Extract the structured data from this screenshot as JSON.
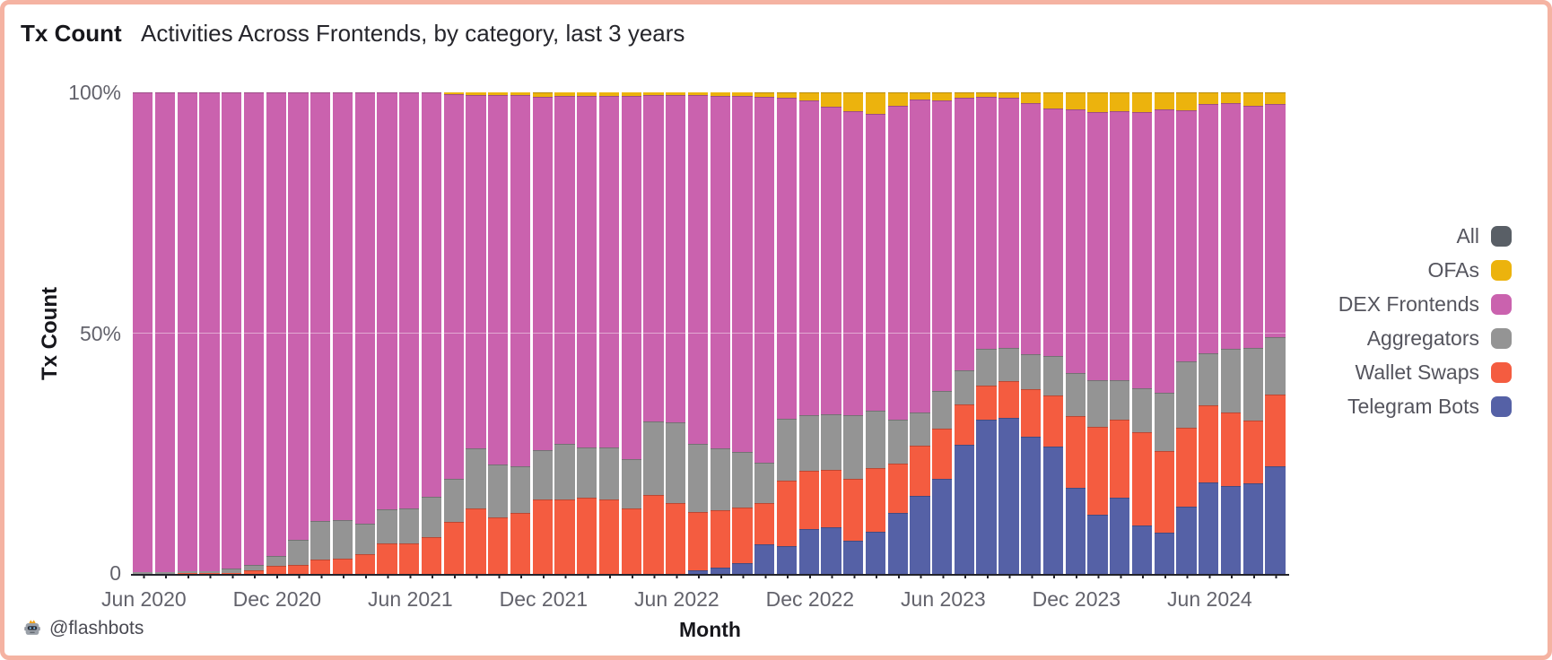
{
  "frame": {
    "border_color": "#f5b3a2",
    "background": "#ffffff"
  },
  "header": {
    "title": "Tx Count",
    "subtitle": "Activities Across Frontends, by category, last 3 years"
  },
  "y_axis": {
    "label": "Tx Count",
    "ticks": [
      "100%",
      "50%",
      "0"
    ]
  },
  "x_axis": {
    "label": "Month",
    "tick_labels": [
      "Jun 2020",
      "Dec 2020",
      "Jun 2021",
      "Dec 2021",
      "Jun 2022",
      "Dec 2022",
      "Jun 2023",
      "Dec 2023",
      "Jun 2024"
    ],
    "tick_indices": [
      0,
      6,
      12,
      18,
      24,
      30,
      36,
      42,
      48
    ]
  },
  "attribution": {
    "icon": "robot-crown",
    "handle": "@flashbots"
  },
  "legend": [
    {
      "label": "All",
      "color": "#595f66"
    },
    {
      "label": "OFAs",
      "color": "#ecb30d"
    },
    {
      "label": "DEX Frontends",
      "color": "#ca62ae"
    },
    {
      "label": "Aggregators",
      "color": "#949494"
    },
    {
      "label": "Wallet Swaps",
      "color": "#f45c40"
    },
    {
      "label": "Telegram Bots",
      "color": "#5561a6"
    }
  ],
  "chart_data": {
    "type": "bar",
    "stacked": true,
    "percent": true,
    "title": "Activities Across Frontends, by category, last 3 years",
    "xlabel": "Month",
    "ylabel": "Tx Count",
    "ylim": [
      0,
      100
    ],
    "grid": "50% line only",
    "legend_position": "right, outside plot, top-to-bottom: All, OFAs, DEX Frontends, Aggregators, Wallet Swaps, Telegram Bots",
    "categories": [
      "Jun 2020",
      "Jul 2020",
      "Aug 2020",
      "Sep 2020",
      "Oct 2020",
      "Nov 2020",
      "Dec 2020",
      "Jan 2021",
      "Feb 2021",
      "Mar 2021",
      "Apr 2021",
      "May 2021",
      "Jun 2021",
      "Jul 2021",
      "Aug 2021",
      "Sep 2021",
      "Oct 2021",
      "Nov 2021",
      "Dec 2021",
      "Jan 2022",
      "Feb 2022",
      "Mar 2022",
      "Apr 2022",
      "May 2022",
      "Jun 2022",
      "Jul 2022",
      "Aug 2022",
      "Sep 2022",
      "Oct 2022",
      "Nov 2022",
      "Dec 2022",
      "Jan 2023",
      "Feb 2023",
      "Mar 2023",
      "Apr 2023",
      "May 2023",
      "Jun 2023",
      "Jul 2023",
      "Aug 2023",
      "Sep 2023",
      "Oct 2023",
      "Nov 2023",
      "Dec 2023",
      "Jan 2024",
      "Feb 2024",
      "Mar 2024",
      "Apr 2024",
      "May 2024",
      "Jun 2024",
      "Jul 2024",
      "Aug 2024",
      "Sep 2024"
    ],
    "series": [
      {
        "name": "Telegram Bots",
        "color": "#5561a6",
        "values": [
          0,
          0,
          0,
          0,
          0,
          0,
          0,
          0,
          0,
          0,
          0,
          0,
          0,
          0,
          0,
          0,
          0,
          0,
          0,
          0,
          0,
          0,
          0,
          0,
          0,
          0.9,
          1.5,
          2.4,
          6.3,
          5.9,
          9.4,
          9.8,
          7.1,
          9.0,
          12.9,
          16.4,
          19.9,
          26.9,
          32.1,
          32.5,
          28.6,
          26.5,
          18.1,
          12.4,
          16.0,
          10.2,
          8.8,
          14.1,
          19.2,
          18.4,
          19.0,
          22.5
        ]
      },
      {
        "name": "Wallet Swaps",
        "color": "#f45c40",
        "values": [
          0.2,
          0.2,
          0.3,
          0.3,
          0.3,
          1.0,
          1.9,
          2.0,
          3.1,
          3.4,
          4.2,
          6.6,
          6.5,
          7.8,
          10.9,
          13.7,
          11.9,
          12.8,
          15.6,
          15.6,
          16.0,
          15.6,
          13.7,
          16.5,
          14.9,
          12.1,
          11.8,
          11.6,
          8.5,
          13.7,
          12.2,
          11.9,
          12.8,
          13.2,
          10.2,
          10.3,
          10.4,
          8.4,
          7.1,
          7.6,
          9.9,
          10.7,
          14.8,
          18.3,
          16.2,
          19.3,
          16.8,
          16.3,
          16.0,
          15.3,
          12.9,
          14.8
        ]
      },
      {
        "name": "Aggregators",
        "color": "#949494",
        "values": [
          0.3,
          0.3,
          0.5,
          0.5,
          1.0,
          1.0,
          2.0,
          5.2,
          8.0,
          8.0,
          6.4,
          7.0,
          7.3,
          8.4,
          9.0,
          12.5,
          11.0,
          9.7,
          10.2,
          11.5,
          10.4,
          10.8,
          10.3,
          15.3,
          16.7,
          14.1,
          13.0,
          11.4,
          8.5,
          12.8,
          11.4,
          11.5,
          13.1,
          11.8,
          9.0,
          6.9,
          7.8,
          7.1,
          7.6,
          6.9,
          7.2,
          8.2,
          8.9,
          9.6,
          8.1,
          9.1,
          12.1,
          13.8,
          10.8,
          13.2,
          15.1,
          11.9
        ]
      },
      {
        "name": "DEX Frontends",
        "color": "#ca62ae",
        "values": [
          99.5,
          99.5,
          99.2,
          99.2,
          98.7,
          98.0,
          96.1,
          92.8,
          88.9,
          88.6,
          89.4,
          86.4,
          86.2,
          83.8,
          79.7,
          73.3,
          76.6,
          76.9,
          73.3,
          72.1,
          72.8,
          72.9,
          75.3,
          67.6,
          67.8,
          72.3,
          73.0,
          73.8,
          75.8,
          66.4,
          65.4,
          63.8,
          63.1,
          61.5,
          65.1,
          65.0,
          60.3,
          56.5,
          52.3,
          51.9,
          52.0,
          51.3,
          54.7,
          55.7,
          55.8,
          57.4,
          58.8,
          52.1,
          51.5,
          50.9,
          50.3,
          48.3
        ]
      },
      {
        "name": "OFAs",
        "color": "#ecb30d",
        "values": [
          0,
          0,
          0,
          0,
          0,
          0,
          0,
          0,
          0,
          0,
          0,
          0,
          0,
          0,
          0.4,
          0.5,
          0.5,
          0.6,
          0.9,
          0.8,
          0.8,
          0.7,
          0.7,
          0.6,
          0.6,
          0.6,
          0.7,
          0.8,
          0.9,
          1.2,
          1.6,
          3.0,
          3.9,
          4.5,
          2.8,
          1.4,
          1.6,
          1.1,
          0.9,
          1.1,
          2.3,
          3.3,
          3.5,
          4.0,
          3.9,
          4.0,
          3.5,
          3.7,
          2.5,
          2.2,
          2.7,
          2.5
        ]
      },
      {
        "name": "All",
        "color": "#595f66",
        "values": [
          0,
          0,
          0,
          0,
          0,
          0,
          0,
          0,
          0,
          0,
          0,
          0,
          0,
          0,
          0,
          0,
          0,
          0,
          0,
          0,
          0,
          0,
          0,
          0,
          0,
          0,
          0,
          0,
          0,
          0,
          0,
          0,
          0,
          0,
          0,
          0,
          0,
          0,
          0,
          0,
          0,
          0,
          0,
          0,
          0,
          0,
          0,
          0,
          0,
          0,
          0,
          0
        ]
      }
    ]
  }
}
